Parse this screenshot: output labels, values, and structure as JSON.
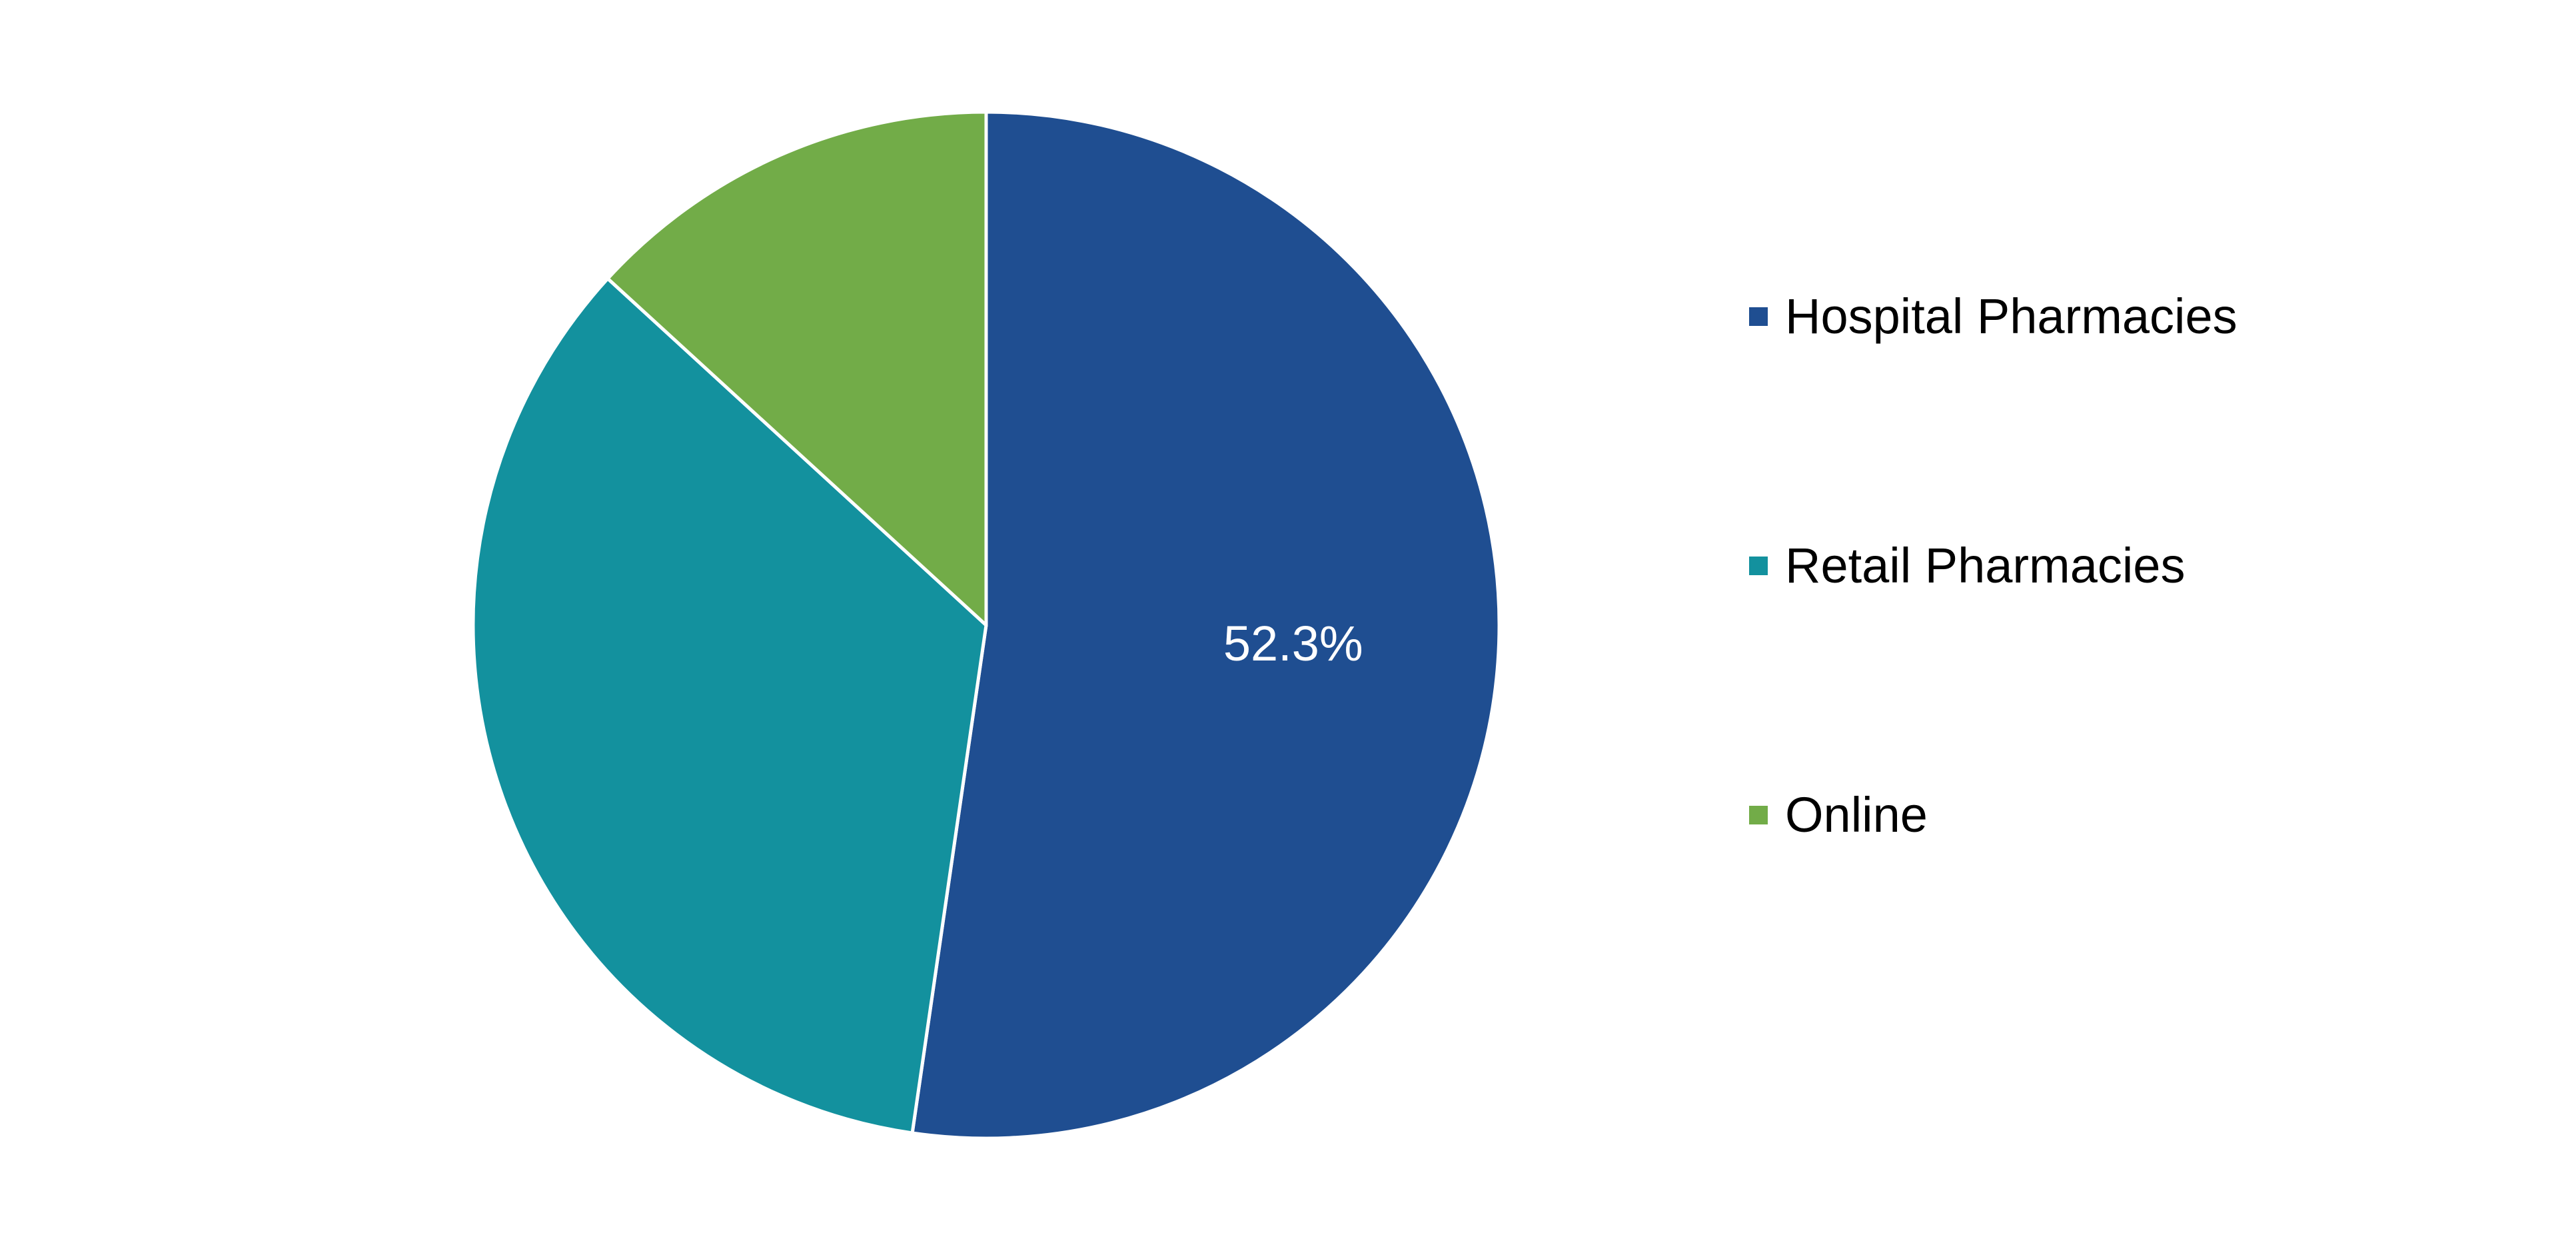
{
  "chart_data": {
    "type": "pie",
    "title": "",
    "series": [
      {
        "slices": [
          {
            "label": "Hospital Pharmacies",
            "value": 52.3,
            "color": "#1f4e91",
            "data_label": "52.3%"
          },
          {
            "label": "Retail Pharmacies",
            "value": 34.5,
            "color": "#13919e",
            "data_label": ""
          },
          {
            "label": "Online",
            "value": 13.2,
            "color": "#72ac48",
            "data_label": ""
          }
        ]
      }
    ],
    "legend": {
      "placement": "right",
      "items": [
        "Hospital Pharmacies",
        "Retail Pharmacies",
        "Online"
      ]
    },
    "start_angle_deg": 0,
    "direction": "clockwise",
    "slice_border_color": "#ffffff"
  }
}
